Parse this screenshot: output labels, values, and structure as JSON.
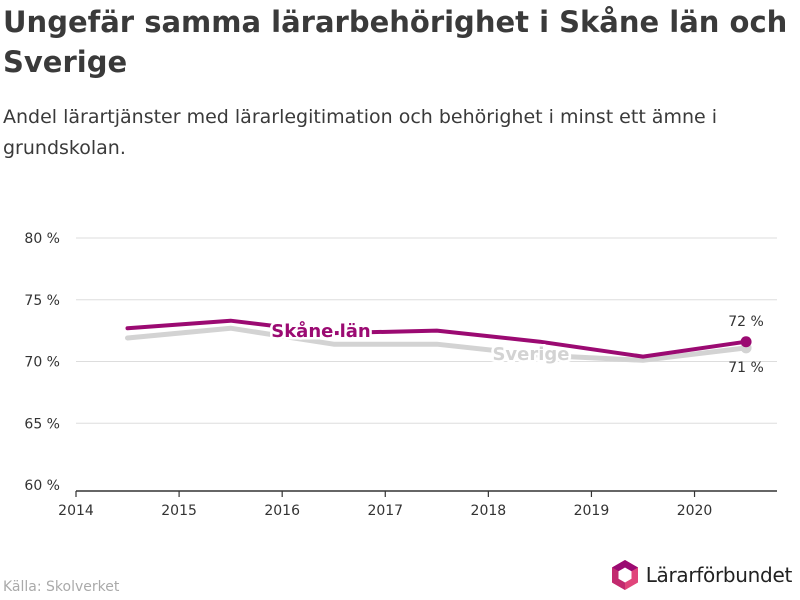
{
  "title": "Ungefär samma lärarbehörighet i Skåne län och Sverige",
  "subtitle": "Andel lärartjänster med lärarlegitimation och behörighet i minst ett ämne i grundskolan.",
  "source": "Källa: Skolverket",
  "logo": {
    "text": "Lärarförbundet",
    "icon": "lararforbundet-logo-icon"
  },
  "colors": {
    "skane": "#9b0a72",
    "sverige": "#d3d3d3",
    "axis": "#333333",
    "grid": "#dddddd"
  },
  "chart_data": {
    "type": "line",
    "x_ticks": [
      2014,
      2015,
      2016,
      2017,
      2018,
      2019,
      2020
    ],
    "y_ticks": [
      60,
      65,
      70,
      75,
      80
    ],
    "y_tick_labels": [
      "60 %",
      "65 %",
      "70 %",
      "75 %",
      "80 %"
    ],
    "xlim": [
      2014,
      2020.8
    ],
    "ylim": [
      60,
      80
    ],
    "grid": true,
    "series": [
      {
        "name": "Sverige",
        "color": "#d3d3d3",
        "x": [
          2014.5,
          2015.5,
          2016.5,
          2017.5,
          2018.5,
          2019.5,
          2020.5
        ],
        "values": [
          71.9,
          72.7,
          71.4,
          71.4,
          70.5,
          70.1,
          71.1
        ],
        "end_label": "71 %"
      },
      {
        "name": "Skåne län",
        "color": "#9b0a72",
        "x": [
          2014.5,
          2015.5,
          2016.5,
          2017.5,
          2018.5,
          2019.5,
          2020.5
        ],
        "values": [
          72.7,
          73.3,
          72.3,
          72.5,
          71.6,
          70.4,
          71.6
        ],
        "end_label": "72 %"
      }
    ]
  }
}
